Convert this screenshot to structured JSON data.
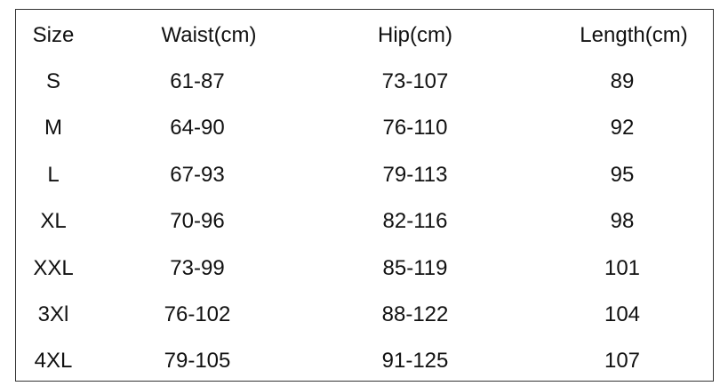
{
  "table": {
    "header": [
      "Size",
      "Waist(cm)",
      "Hip(cm)",
      "Length(cm)"
    ],
    "rows": [
      [
        "S",
        "61-87",
        "73-107",
        "89"
      ],
      [
        "M",
        "64-90",
        "76-110",
        "92"
      ],
      [
        "L",
        "67-93",
        "79-113",
        "95"
      ],
      [
        "XL",
        "70-96",
        "82-116",
        "98"
      ],
      [
        "XXL",
        "73-99",
        "85-119",
        "101"
      ],
      [
        "3Xl",
        "76-102",
        "88-122",
        "104"
      ],
      [
        "4XL",
        "79-105",
        "91-125",
        "107"
      ]
    ]
  }
}
